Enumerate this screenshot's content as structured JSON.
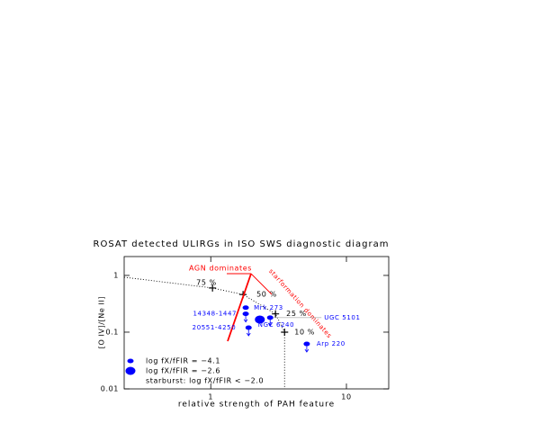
{
  "chart_data": {
    "type": "scatter",
    "title": "ROSAT detected ULIRGs in ISO SWS diagnostic diagram",
    "x_label": "relative strength of PAH feature",
    "y_label": "[O IV]/[Ne II]",
    "log_x": true,
    "log_y": true,
    "xlim": [
      0.23,
      20.5
    ],
    "ylim": [
      0.01,
      2.15
    ],
    "xticks": [
      1,
      10
    ],
    "yticks": [
      0.01,
      0.1,
      1
    ],
    "color": "#0000ff",
    "points": [
      {
        "label": "Mrk 273",
        "x": 1.81,
        "y": 0.27,
        "upper_limit": false,
        "group": 0
      },
      {
        "label": "14348-1447",
        "x": 1.81,
        "y": 0.21,
        "upper_limit": true,
        "group": 0
      },
      {
        "label": "20551-4250",
        "x": 1.9,
        "y": 0.12,
        "upper_limit": true,
        "group": 0
      },
      {
        "label": "NGC 6240",
        "x": 2.3,
        "y": 0.167,
        "upper_limit": false,
        "group": 1
      },
      {
        "label": "UGC 5101",
        "x": 2.74,
        "y": 0.18,
        "upper_limit": true,
        "group": 0
      },
      {
        "label": "Arp 220",
        "x": 5.1,
        "y": 0.062,
        "upper_limit": true,
        "group": 0
      }
    ],
    "mixing_line": {
      "x": [
        0.23,
        1.03,
        1.73,
        3.0,
        3.5,
        3.5
      ],
      "y": [
        0.93,
        0.6,
        0.46,
        0.21,
        0.1,
        0.01
      ],
      "labels": [
        null,
        "75 %",
        "50 %",
        "25 %",
        "10 %",
        null
      ]
    },
    "annotation_color": "#ff0000",
    "annotations": [
      "AGN dominates",
      "starformation dominates"
    ],
    "legend": [
      "log fX/fFIR = −4.1",
      "log fX/fFIR = −2.6"
    ],
    "legend_note": "starburst: log fX/fFIR < −2.0"
  }
}
